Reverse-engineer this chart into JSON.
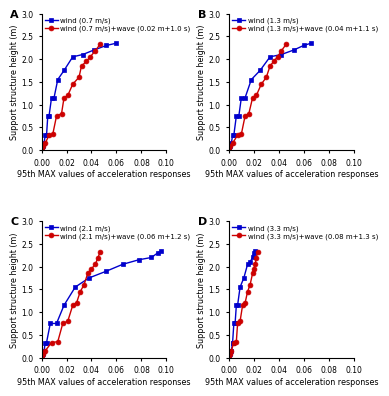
{
  "panels": [
    {
      "label": "A",
      "wind_label": "wind (0.7 m/s)",
      "wave_label": "wind (0.7 m/s)+wave (0.02 m+1.0 s)",
      "wind_x": [
        0.0,
        0.001,
        0.002,
        0.003,
        0.004,
        0.005,
        0.006,
        0.008,
        0.01,
        0.013,
        0.018,
        0.025,
        0.033,
        0.042,
        0.052,
        0.06
      ],
      "wind_y": [
        0.0,
        0.08,
        0.15,
        0.33,
        0.33,
        0.75,
        0.75,
        1.15,
        1.15,
        1.55,
        1.75,
        2.05,
        2.1,
        2.2,
        2.3,
        2.35
      ],
      "wave_x": [
        0.0,
        0.001,
        0.003,
        0.006,
        0.009,
        0.012,
        0.016,
        0.018,
        0.021,
        0.025,
        0.03,
        0.032,
        0.036,
        0.039,
        0.043,
        0.047
      ],
      "wave_y": [
        0.0,
        0.08,
        0.15,
        0.33,
        0.35,
        0.75,
        0.8,
        1.15,
        1.2,
        1.45,
        1.6,
        1.85,
        1.95,
        2.05,
        2.18,
        2.33
      ],
      "xlim": [
        0.0,
        0.1
      ],
      "ylim": [
        0.0,
        3.0
      ]
    },
    {
      "label": "B",
      "wind_label": "wind (1.3 m/s)",
      "wave_label": "wind (1.3 m/s)+wave (0.04 m+1.1 s)",
      "wind_x": [
        0.0,
        0.001,
        0.002,
        0.003,
        0.004,
        0.006,
        0.008,
        0.01,
        0.013,
        0.018,
        0.025,
        0.033,
        0.042,
        0.052,
        0.06,
        0.066
      ],
      "wind_y": [
        0.0,
        0.08,
        0.15,
        0.33,
        0.33,
        0.75,
        0.75,
        1.15,
        1.15,
        1.55,
        1.75,
        2.05,
        2.1,
        2.2,
        2.3,
        2.35
      ],
      "wave_x": [
        0.0,
        0.001,
        0.003,
        0.007,
        0.01,
        0.013,
        0.016,
        0.019,
        0.022,
        0.026,
        0.03,
        0.033,
        0.036,
        0.039,
        0.042,
        0.046
      ],
      "wave_y": [
        0.0,
        0.08,
        0.15,
        0.33,
        0.35,
        0.75,
        0.8,
        1.15,
        1.2,
        1.45,
        1.6,
        1.85,
        1.95,
        2.05,
        2.18,
        2.33
      ],
      "xlim": [
        0.0,
        0.1
      ],
      "ylim": [
        0.0,
        3.0
      ]
    },
    {
      "label": "C",
      "wind_label": "wind (2.1 m/s)",
      "wave_label": "wind (2.1 m/s)+wave (0.06 m+1.2 s)",
      "wind_x": [
        0.0,
        0.001,
        0.002,
        0.003,
        0.004,
        0.007,
        0.012,
        0.018,
        0.027,
        0.038,
        0.052,
        0.065,
        0.078,
        0.088,
        0.093,
        0.096
      ],
      "wind_y": [
        0.0,
        0.08,
        0.15,
        0.33,
        0.33,
        0.75,
        0.75,
        1.15,
        1.55,
        1.75,
        1.9,
        2.05,
        2.15,
        2.2,
        2.3,
        2.35
      ],
      "wave_x": [
        0.0,
        0.001,
        0.003,
        0.008,
        0.013,
        0.017,
        0.021,
        0.025,
        0.028,
        0.031,
        0.034,
        0.037,
        0.04,
        0.043,
        0.045,
        0.047
      ],
      "wave_y": [
        0.0,
        0.08,
        0.15,
        0.33,
        0.35,
        0.75,
        0.8,
        1.15,
        1.2,
        1.45,
        1.6,
        1.85,
        1.95,
        2.05,
        2.18,
        2.33
      ],
      "xlim": [
        0.0,
        0.1
      ],
      "ylim": [
        0.0,
        3.0
      ]
    },
    {
      "label": "D",
      "wind_label": "wind (3.3 m/s)",
      "wave_label": "wind (3.3 m/s)+wave (0.08 m+1.3 s)",
      "wind_x": [
        0.0,
        0.001,
        0.002,
        0.003,
        0.003,
        0.004,
        0.005,
        0.006,
        0.007,
        0.009,
        0.012,
        0.015,
        0.017,
        0.019,
        0.02,
        0.021
      ],
      "wind_y": [
        0.0,
        0.08,
        0.15,
        0.33,
        0.33,
        0.75,
        0.75,
        1.15,
        1.15,
        1.55,
        1.75,
        2.05,
        2.1,
        2.2,
        2.3,
        2.35
      ],
      "wave_x": [
        0.0,
        0.001,
        0.002,
        0.004,
        0.006,
        0.007,
        0.009,
        0.011,
        0.013,
        0.015,
        0.017,
        0.019,
        0.02,
        0.021,
        0.022,
        0.023
      ],
      "wave_y": [
        0.0,
        0.08,
        0.15,
        0.33,
        0.35,
        0.75,
        0.8,
        1.15,
        1.2,
        1.45,
        1.6,
        1.85,
        1.95,
        2.05,
        2.18,
        2.33
      ],
      "xlim": [
        0.0,
        0.1
      ],
      "ylim": [
        0.0,
        3.0
      ]
    }
  ],
  "wind_color": "#0000cc",
  "wave_color": "#cc0000",
  "marker_size": 3.5,
  "line_width": 1.0,
  "xlabel": "95th MAX values of acceleration responses",
  "ylabel": "Support structure height (m)",
  "xlabel_fontsize": 5.8,
  "ylabel_fontsize": 5.8,
  "tick_fontsize": 5.5,
  "legend_fontsize": 5.0,
  "label_fontsize": 8,
  "xticks": [
    0.0,
    0.02,
    0.04,
    0.06,
    0.08,
    0.1
  ],
  "yticks": [
    0.0,
    0.5,
    1.0,
    1.5,
    2.0,
    2.5,
    3.0
  ]
}
